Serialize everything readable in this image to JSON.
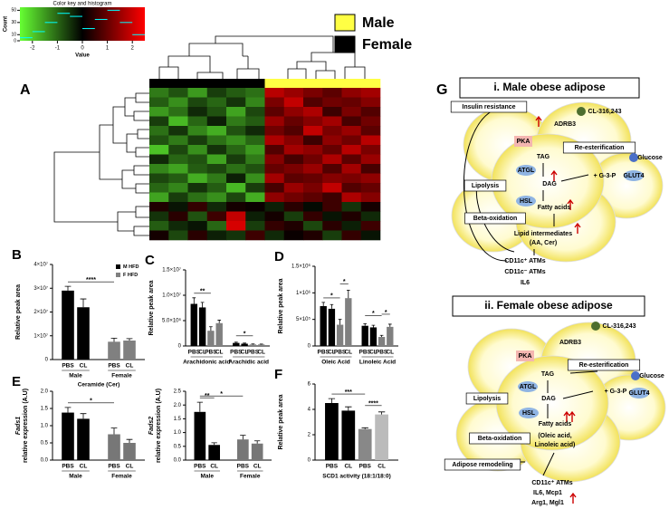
{
  "chart_data": [
    {
      "type": "histogram",
      "title": "Color key and histogram",
      "xlabel": "Value",
      "ylabel": "Count",
      "bins": [
        -2.5,
        -2,
        -1.5,
        -1,
        -0.5,
        0,
        0.5,
        1,
        1.5,
        2,
        2.5
      ],
      "values": [
        5,
        15,
        30,
        45,
        40,
        20,
        35,
        50,
        30,
        10
      ],
      "xlim": [
        -2.5,
        2.5
      ],
      "xticks": [
        -2,
        -1,
        0,
        1,
        2
      ],
      "ylim": [
        0,
        55
      ],
      "yticks": [
        0,
        10,
        30,
        50
      ],
      "color": "#00ffff"
    },
    {
      "type": "heatmap",
      "panel": "A",
      "legend": [
        {
          "name": "Male",
          "color": "#ffff44"
        },
        {
          "name": "Female",
          "color": "#000000"
        }
      ],
      "column_colors": [
        "#000000",
        "#000000",
        "#000000",
        "#000000",
        "#000000",
        "#000000",
        "#ffff44",
        "#ffff44",
        "#ffff44",
        "#ffff44",
        "#ffff44",
        "#ffff44"
      ],
      "values": [
        [
          -1.2,
          -0.8,
          -1.5,
          -0.6,
          -0.9,
          -1.1,
          1.8,
          1.5,
          1.2,
          0.9,
          1.4,
          1.6
        ],
        [
          -0.9,
          -1.4,
          -0.7,
          -1.0,
          -0.5,
          -1.3,
          1.2,
          1.9,
          0.8,
          1.1,
          1.0,
          1.3
        ],
        [
          -1.5,
          -1.1,
          -0.4,
          -0.8,
          -1.6,
          -0.7,
          0.9,
          1.4,
          1.7,
          0.6,
          1.2,
          0.8
        ],
        [
          -0.6,
          -1.8,
          -1.0,
          -0.3,
          -1.2,
          -0.9,
          1.5,
          1.0,
          1.3,
          1.6,
          0.7,
          1.1
        ],
        [
          -1.1,
          -0.5,
          -1.3,
          -1.7,
          -0.8,
          -0.4,
          1.1,
          0.8,
          1.9,
          1.2,
          1.5,
          0.9
        ],
        [
          -0.8,
          -1.2,
          -0.6,
          -1.1,
          -1.4,
          -1.0,
          1.7,
          1.3,
          0.6,
          1.4,
          1.1,
          1.8
        ],
        [
          -1.9,
          -0.7,
          -1.4,
          -0.5,
          -1.0,
          -1.5,
          0.8,
          1.6,
          1.4,
          1.0,
          1.8,
          1.2
        ],
        [
          -0.4,
          -1.0,
          -0.8,
          -1.6,
          -0.6,
          -1.2,
          1.3,
          0.7,
          1.1,
          1.7,
          0.9,
          1.5
        ],
        [
          -1.3,
          -1.6,
          -0.9,
          -0.7,
          -1.1,
          -0.8,
          1.0,
          1.2,
          1.5,
          0.8,
          1.6,
          0.7
        ],
        [
          -0.7,
          -0.9,
          -1.7,
          -1.2,
          -0.3,
          -1.4,
          1.6,
          0.9,
          1.0,
          1.3,
          1.2,
          1.4
        ],
        [
          -1.0,
          -1.3,
          -0.5,
          -0.9,
          -1.8,
          -0.6,
          0.7,
          1.5,
          1.2,
          1.9,
          0.8,
          1.0
        ],
        [
          -1.6,
          -0.6,
          -1.1,
          -1.4,
          -0.7,
          -1.7,
          1.4,
          1.1,
          0.9,
          0.6,
          1.7,
          1.3
        ],
        [
          0.3,
          -0.2,
          0.5,
          -0.4,
          0.2,
          0.1,
          -0.3,
          0.4,
          -0.1,
          0.6,
          -0.5,
          0.2
        ],
        [
          -0.5,
          0.4,
          -0.8,
          0.6,
          1.9,
          -0.3,
          0.2,
          -0.6,
          0.5,
          -0.2,
          0.3,
          -0.4
        ],
        [
          -0.9,
          -0.4,
          -0.2,
          -1.0,
          2.1,
          -0.6,
          0.5,
          0.3,
          -0.7,
          0.4,
          -0.3,
          0.6
        ],
        [
          0.2,
          -0.7,
          0.4,
          -0.3,
          -0.5,
          0.6,
          -0.4,
          0.1,
          0.3,
          -0.6,
          0.5,
          -0.2
        ]
      ]
    },
    {
      "type": "bar",
      "panel": "B",
      "ylabel": "Relative peak area",
      "xlabel": "Ceramide (Cer)",
      "categories": [
        "PBS",
        "CL",
        "PBS",
        "CL"
      ],
      "groups": [
        "Male",
        "Female"
      ],
      "values": [
        29000000,
        22000000,
        7500000,
        8000000
      ],
      "errors": [
        1800000,
        3500000,
        1500000,
        800000
      ],
      "colors": [
        "#000000",
        "#000000",
        "#808080",
        "#808080"
      ],
      "legend": [
        {
          "name": "M HFD",
          "color": "#000000"
        },
        {
          "name": "F HFD",
          "color": "#808080"
        }
      ],
      "significance": [
        {
          "label": "****",
          "between": [
            0,
            2
          ]
        }
      ],
      "ylim": [
        0,
        40000000
      ],
      "yticks": [
        0,
        {
          "value": 10000000,
          "label": "1×10⁷"
        },
        {
          "value": 20000000,
          "label": "2×10⁷"
        },
        {
          "value": 30000000,
          "label": "3×10⁷"
        },
        {
          "value": 40000000,
          "label": "4×10⁷"
        }
      ]
    },
    {
      "type": "bar",
      "panel": "C",
      "ylabel": "Relative peak area",
      "categories": [
        "PBS",
        "CL",
        "PBS",
        "CL",
        "PBS",
        "CL",
        "PBS",
        "CL"
      ],
      "groups": [
        "Arachidonic acid",
        "Arachidic acid"
      ],
      "values": [
        8300000,
        7600000,
        3000000,
        4500000,
        600000,
        450000,
        300000,
        300000
      ],
      "errors": [
        1200000,
        1000000,
        800000,
        600000,
        150000,
        120000,
        100000,
        80000
      ],
      "colors": [
        "#000000",
        "#000000",
        "#808080",
        "#808080",
        "#000000",
        "#000000",
        "#808080",
        "#808080"
      ],
      "significance": [
        {
          "label": "**",
          "between": [
            0,
            2
          ]
        },
        {
          "label": "*",
          "between": [
            4,
            6
          ]
        }
      ],
      "ylim": [
        0,
        15000000
      ],
      "yticks": [
        0,
        {
          "value": 5000000,
          "label": "5.0×10⁶"
        },
        {
          "value": 10000000,
          "label": "1.0×10⁷"
        },
        {
          "value": 15000000,
          "label": "1.5×10⁷"
        }
      ]
    },
    {
      "type": "bar",
      "panel": "D",
      "ylabel": "Relative peak area",
      "categories": [
        "PBS",
        "CL",
        "PBS",
        "CL",
        "PBS",
        "CL",
        "PBS",
        "CL"
      ],
      "groups": [
        "Oleic Acid",
        "Linoleic Acid"
      ],
      "values": [
        750000,
        700000,
        400000,
        900000,
        380000,
        350000,
        170000,
        360000
      ],
      "errors": [
        70000,
        80000,
        100000,
        150000,
        40000,
        40000,
        30000,
        50000
      ],
      "colors": [
        "#000000",
        "#000000",
        "#808080",
        "#808080",
        "#000000",
        "#000000",
        "#808080",
        "#808080"
      ],
      "significance": [
        {
          "label": "*",
          "between": [
            0,
            2
          ]
        },
        {
          "label": "*",
          "between": [
            2,
            3
          ]
        },
        {
          "label": "*",
          "between": [
            4,
            6
          ]
        },
        {
          "label": "*",
          "between": [
            6,
            7
          ]
        }
      ],
      "ylim": [
        0,
        1500000
      ],
      "yticks": [
        0,
        {
          "value": 500000,
          "label": "5×10⁵"
        },
        {
          "value": 1000000,
          "label": "1×10⁶"
        },
        {
          "value": 1500000,
          "label": "1.5×10⁶"
        }
      ]
    },
    {
      "type": "bar",
      "panel": "E",
      "ylabel": [
        "Fads1",
        "relative expression (A.U)"
      ],
      "categories": [
        "PBS",
        "CL",
        "PBS",
        "CL"
      ],
      "groups": [
        "Male",
        "Female"
      ],
      "values": [
        1.38,
        1.2,
        0.75,
        0.5
      ],
      "errors": [
        0.15,
        0.15,
        0.18,
        0.1
      ],
      "colors": [
        "#000000",
        "#000000",
        "#777777",
        "#777777"
      ],
      "significance": [
        {
          "label": "*",
          "between": [
            0,
            2
          ]
        }
      ],
      "ylim": [
        0,
        2
      ],
      "yticks": [
        {
          "value": 0,
          "label": "0.0"
        },
        0.5,
        {
          "value": 1,
          "label": "1.0"
        },
        1.5,
        {
          "value": 2,
          "label": "2.0"
        }
      ]
    },
    {
      "type": "bar",
      "ylabel": [
        "Fads2",
        "relative expression (A.U)"
      ],
      "categories": [
        "PBS",
        "CL",
        "PBS",
        "CL"
      ],
      "groups": [
        "Male",
        "Female"
      ],
      "values": [
        1.75,
        0.55,
        0.75,
        0.6
      ],
      "errors": [
        0.35,
        0.08,
        0.15,
        0.1
      ],
      "colors": [
        "#000000",
        "#000000",
        "#777777",
        "#777777"
      ],
      "significance": [
        {
          "label": "**",
          "between": [
            0,
            1
          ]
        },
        {
          "label": "*",
          "between": [
            0,
            2
          ]
        }
      ],
      "ylim": [
        0,
        2.5
      ],
      "yticks": [
        {
          "value": 0,
          "label": "0.0"
        },
        0.5,
        {
          "value": 1,
          "label": "1.0"
        },
        1.5,
        {
          "value": 2,
          "label": "2.0"
        },
        2.5
      ]
    },
    {
      "type": "bar",
      "panel": "F",
      "ylabel": "Relative peak area",
      "xlabel": "SCD1 activity (18:1/18:0)",
      "categories": [
        "PBS",
        "CL",
        "PBS",
        "CL"
      ],
      "values": [
        4.5,
        3.9,
        2.45,
        3.6
      ],
      "errors": [
        0.35,
        0.3,
        0.1,
        0.2
      ],
      "colors": [
        "#000000",
        "#000000",
        "#888888",
        "#bbbbbb"
      ],
      "significance": [
        {
          "label": "***",
          "between": [
            0,
            2
          ]
        },
        {
          "label": "****",
          "between": [
            2,
            3
          ]
        }
      ],
      "ylim": [
        0,
        6
      ],
      "yticks": [
        0,
        2,
        4,
        6
      ]
    }
  ],
  "diagram": {
    "panel": "G",
    "male": {
      "title": "i. Male obese adipose",
      "labels": [
        "CL-316,243",
        "ADRB3",
        "Insulin resistance",
        "PKA",
        "TAG",
        "Re-esterification",
        "ATGL",
        "+ G-3-P",
        "Glucose",
        "GLUT4",
        "Lipolysis",
        "DAG",
        "HSL",
        "Fatty acids",
        "Beta-oxidation",
        "Lipid intermediates",
        "(AA, Cer)",
        "CD11c⁺ ATMs",
        "CD11c⁻ ATMs",
        "IL6"
      ]
    },
    "female": {
      "title": "ii. Female obese adipose",
      "labels": [
        "CL-316,243",
        "ADRB3",
        "PKA",
        "TAG",
        "Re-esterification",
        "ATGL",
        "+ G-3-P",
        "Glucose",
        "GLUT4",
        "Lipolysis",
        "DAG",
        "HSL",
        "Fatty acids",
        "(Oleic acid,",
        "Linoleic acid)",
        "Beta-oxidation",
        "Adipose remodeling",
        "CD11c⁺ ATMs",
        "IL6, Mcp1",
        "Arg1, Mgl1"
      ]
    }
  }
}
